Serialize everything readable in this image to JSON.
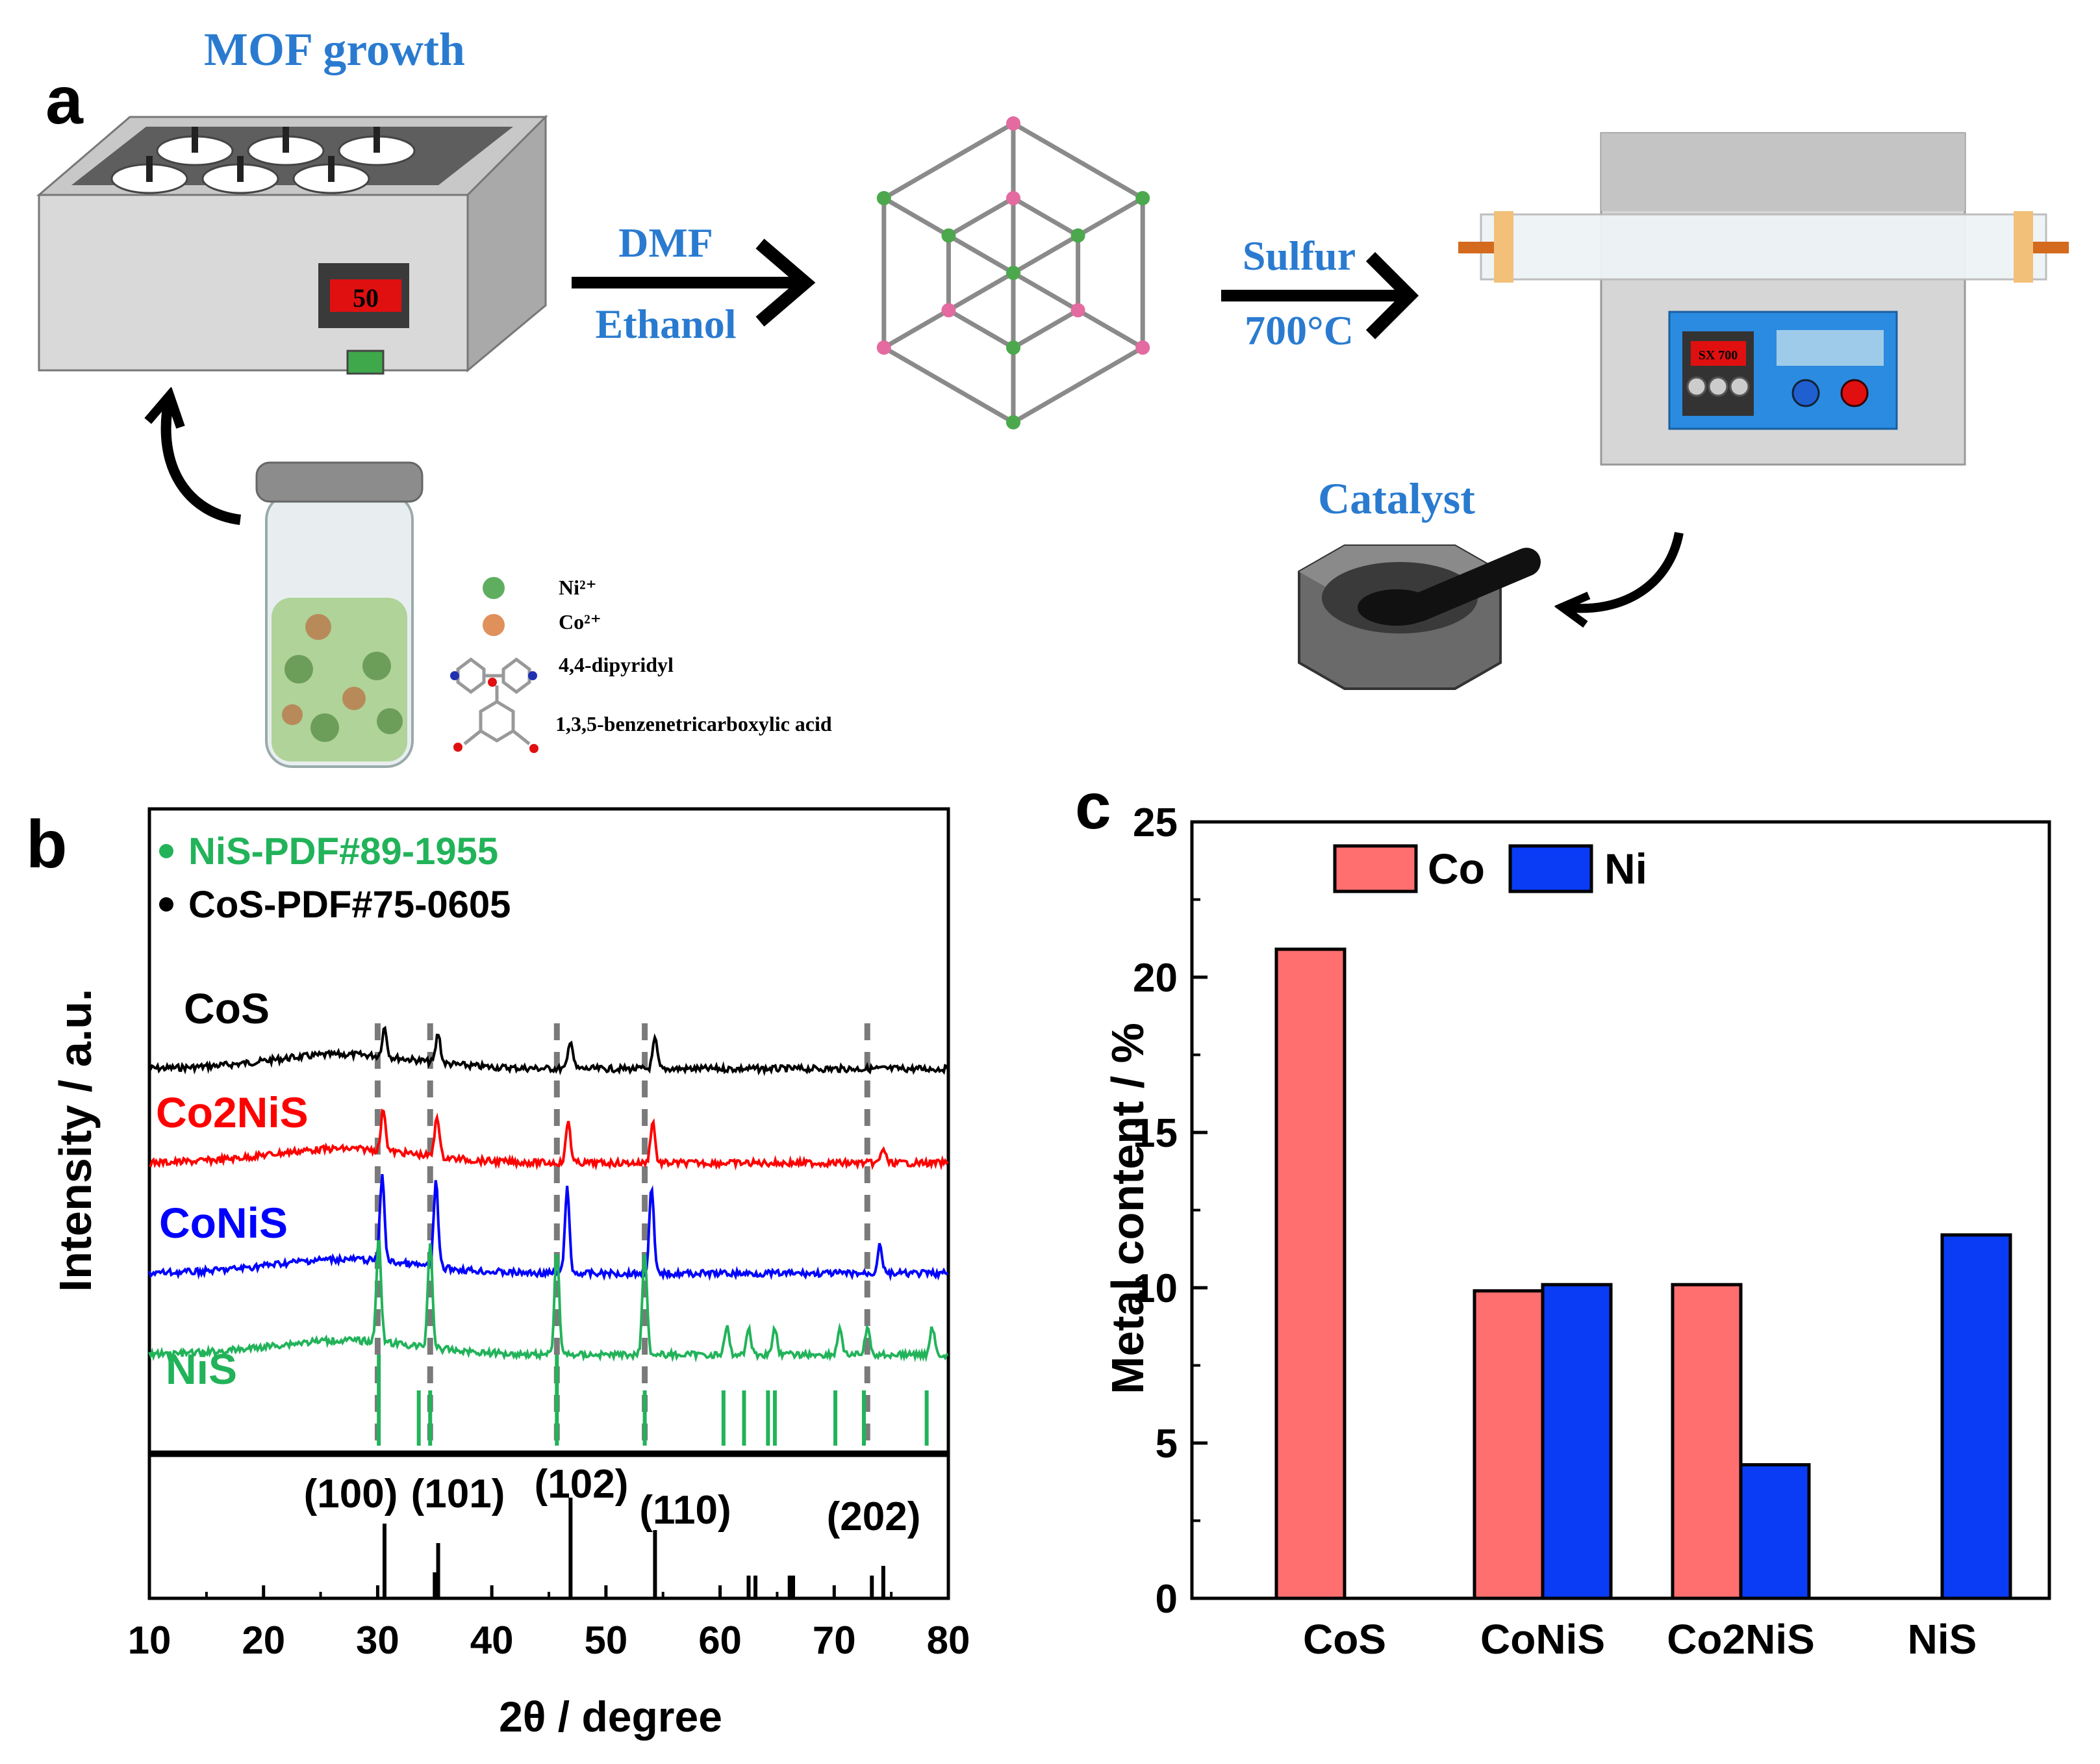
{
  "panel_a": {
    "panel_label": "a",
    "mof_growth_label": "MOF growth",
    "heater_display": "50",
    "solvent_1": "DMF",
    "solvent_2": "Ethanol",
    "sulfur_label": "Sulfur",
    "temperature_label": "700°C",
    "furnace_display": "SX 700",
    "catalyst_label": "Catalyst",
    "legend": [
      {
        "label": "Ni²⁺",
        "icon": "nickel-ion-sphere",
        "color": "#5fae5f"
      },
      {
        "label": "Co²⁺",
        "icon": "cobalt-ion-sphere",
        "color": "#e0905a"
      },
      {
        "label": "4,4-dipyridyl",
        "icon": "dipyridyl-molecule"
      },
      {
        "label": "1,3,5-benzenetricarboxylic acid",
        "icon": "btc-molecule"
      }
    ]
  },
  "panel_b_label": "b",
  "panel_c_label": "c",
  "chart_data": [
    {
      "type": "line",
      "title": "",
      "xlabel": "2θ / degree",
      "ylabel": "Intensity / a.u.",
      "xlim": [
        10,
        80
      ],
      "xticks": [
        "10",
        "20",
        "30",
        "40",
        "50",
        "60",
        "70",
        "80"
      ],
      "legend": [
        {
          "label": "NiS-PDF#89-1955",
          "color": "#22b35a"
        },
        {
          "label": "CoS-PDF#75-0605",
          "color": "#000000"
        }
      ],
      "series": [
        {
          "name": "CoS",
          "color": "#000000",
          "peaks": [
            30.6,
            35.3,
            46.9,
            54.3
          ]
        },
        {
          "name": "Co2NiS",
          "color": "#ff0000",
          "peaks": [
            30.5,
            35.2,
            46.7,
            54.1,
            74.3
          ]
        },
        {
          "name": "CoNiS",
          "color": "#0000ff",
          "peaks": [
            30.4,
            35.1,
            46.6,
            54.0,
            74.0
          ]
        },
        {
          "name": "NiS",
          "color": "#22b35a",
          "peaks": [
            30.1,
            34.6,
            45.7,
            53.4,
            60.6,
            62.5,
            64.8,
            70.5,
            72.9,
            78.6
          ]
        }
      ],
      "nis_reference_lines": [
        30.1,
        33.6,
        34.6,
        45.7,
        53.4,
        60.3,
        62.1,
        64.2,
        64.8,
        70.1,
        72.6,
        78.1
      ],
      "cos_reference_lines": [
        30.6,
        35.0,
        35.3,
        46.9,
        54.3,
        62.5,
        63.1,
        66.1,
        66.4,
        73.3,
        74.3
      ],
      "dashed_guides": [
        30.0,
        34.6,
        45.7,
        53.4,
        72.9
      ],
      "cos_peak_labels": [
        {
          "label": "(100)",
          "x": 30.6
        },
        {
          "label": "(101)",
          "x": 35.3
        },
        {
          "label": "(102)",
          "x": 46.9
        },
        {
          "label": "(110)",
          "x": 54.3
        },
        {
          "label": "(202)",
          "x": 74.3
        }
      ]
    },
    {
      "type": "bar",
      "title": "",
      "xlabel": "",
      "ylabel": "Metal content / %",
      "ylim": [
        0,
        25
      ],
      "yticks": [
        "0",
        "5",
        "10",
        "15",
        "20",
        "25"
      ],
      "categories": [
        "CoS",
        "CoNiS",
        "Co2NiS",
        "NiS"
      ],
      "series": [
        {
          "name": "Co",
          "color": "#ff6f6f",
          "values": [
            20.9,
            9.9,
            10.1,
            0
          ]
        },
        {
          "name": "Ni",
          "color": "#0a3cf5",
          "values": [
            0,
            10.1,
            4.3,
            11.7
          ]
        }
      ],
      "legend_position": "top-left"
    }
  ]
}
